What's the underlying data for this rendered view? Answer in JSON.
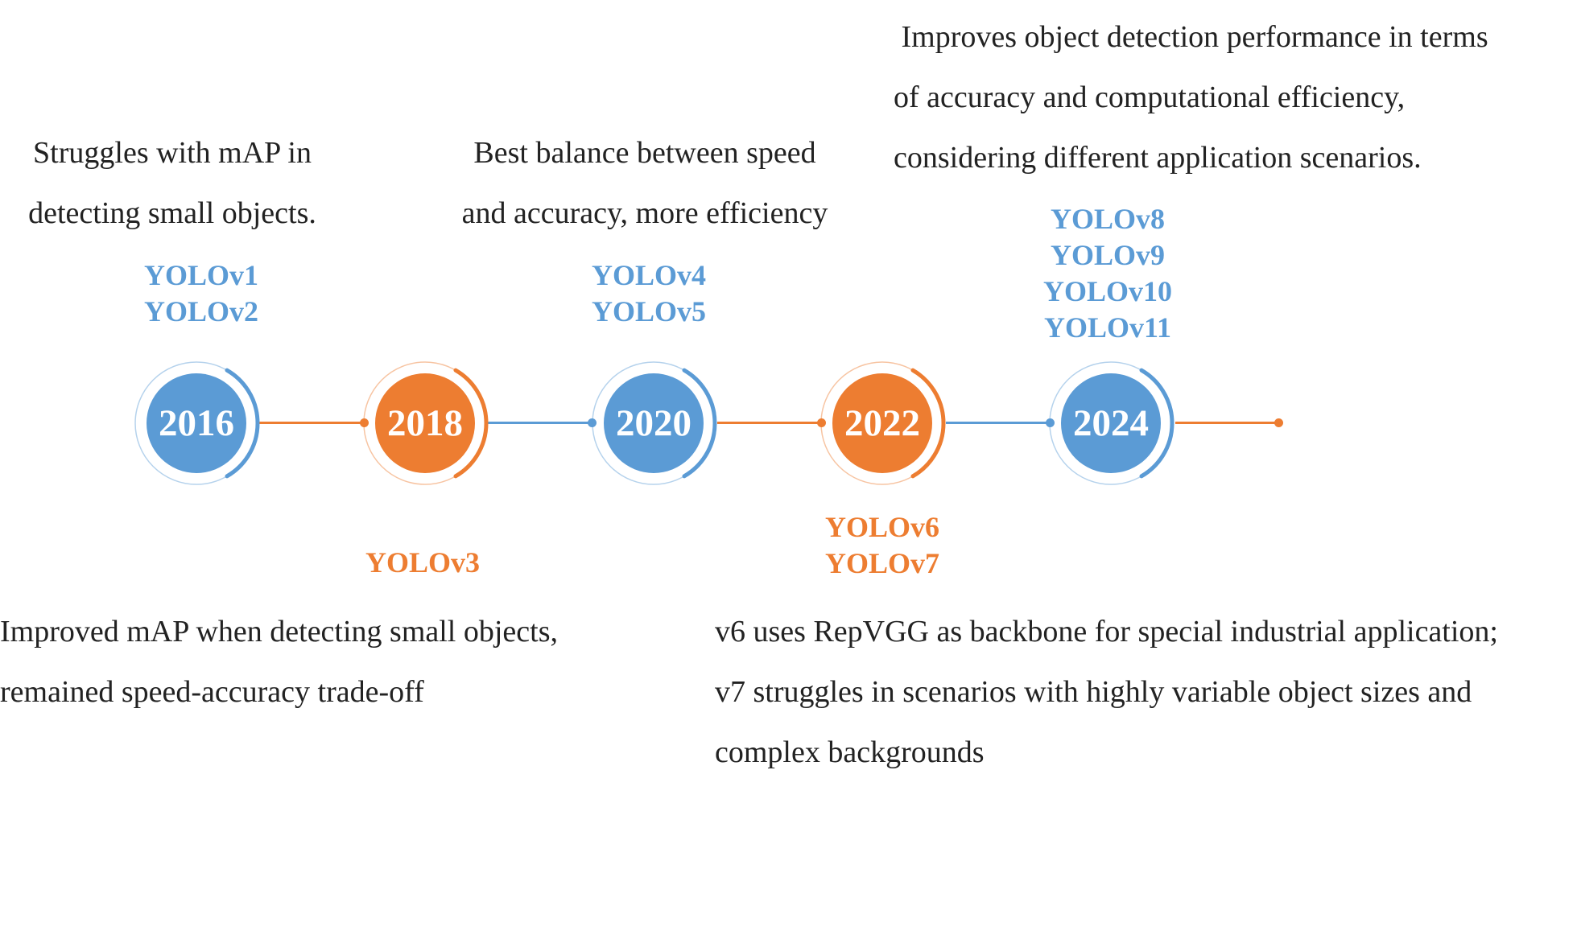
{
  "colors": {
    "blue": "#5b9bd5",
    "orange": "#ed7d31",
    "text": "#222222"
  },
  "nodes": [
    {
      "year": "2016",
      "color": "blue"
    },
    {
      "year": "2018",
      "color": "orange"
    },
    {
      "year": "2020",
      "color": "blue"
    },
    {
      "year": "2022",
      "color": "orange"
    },
    {
      "year": "2024",
      "color": "blue"
    }
  ],
  "models": {
    "m2016": [
      "YOLOv1",
      "YOLOv2"
    ],
    "m2018": [
      "YOLOv3"
    ],
    "m2020": [
      "YOLOv4",
      "YOLOv5"
    ],
    "m2022": [
      "YOLOv6",
      "YOLOv7"
    ],
    "m2024": [
      "YOLOv8",
      "YOLOv9",
      "YOLOv10",
      "YOLOv11"
    ]
  },
  "descriptions": {
    "d2016": [
      "Struggles with mAP in",
      "detecting small objects."
    ],
    "d2018": [
      "Improved mAP when detecting small objects,",
      "remained speed-accuracy trade-off"
    ],
    "d2020": [
      "Best balance between speed",
      "and accuracy, more efficiency"
    ],
    "d2022": [
      "v6 uses RepVGG as backbone for special industrial application;",
      "v7 struggles in scenarios with highly variable object sizes and",
      "complex backgrounds"
    ],
    "d2024": [
      " Improves object detection performance in terms",
      "of accuracy and computational efficiency,",
      "considering different application scenarios."
    ]
  }
}
